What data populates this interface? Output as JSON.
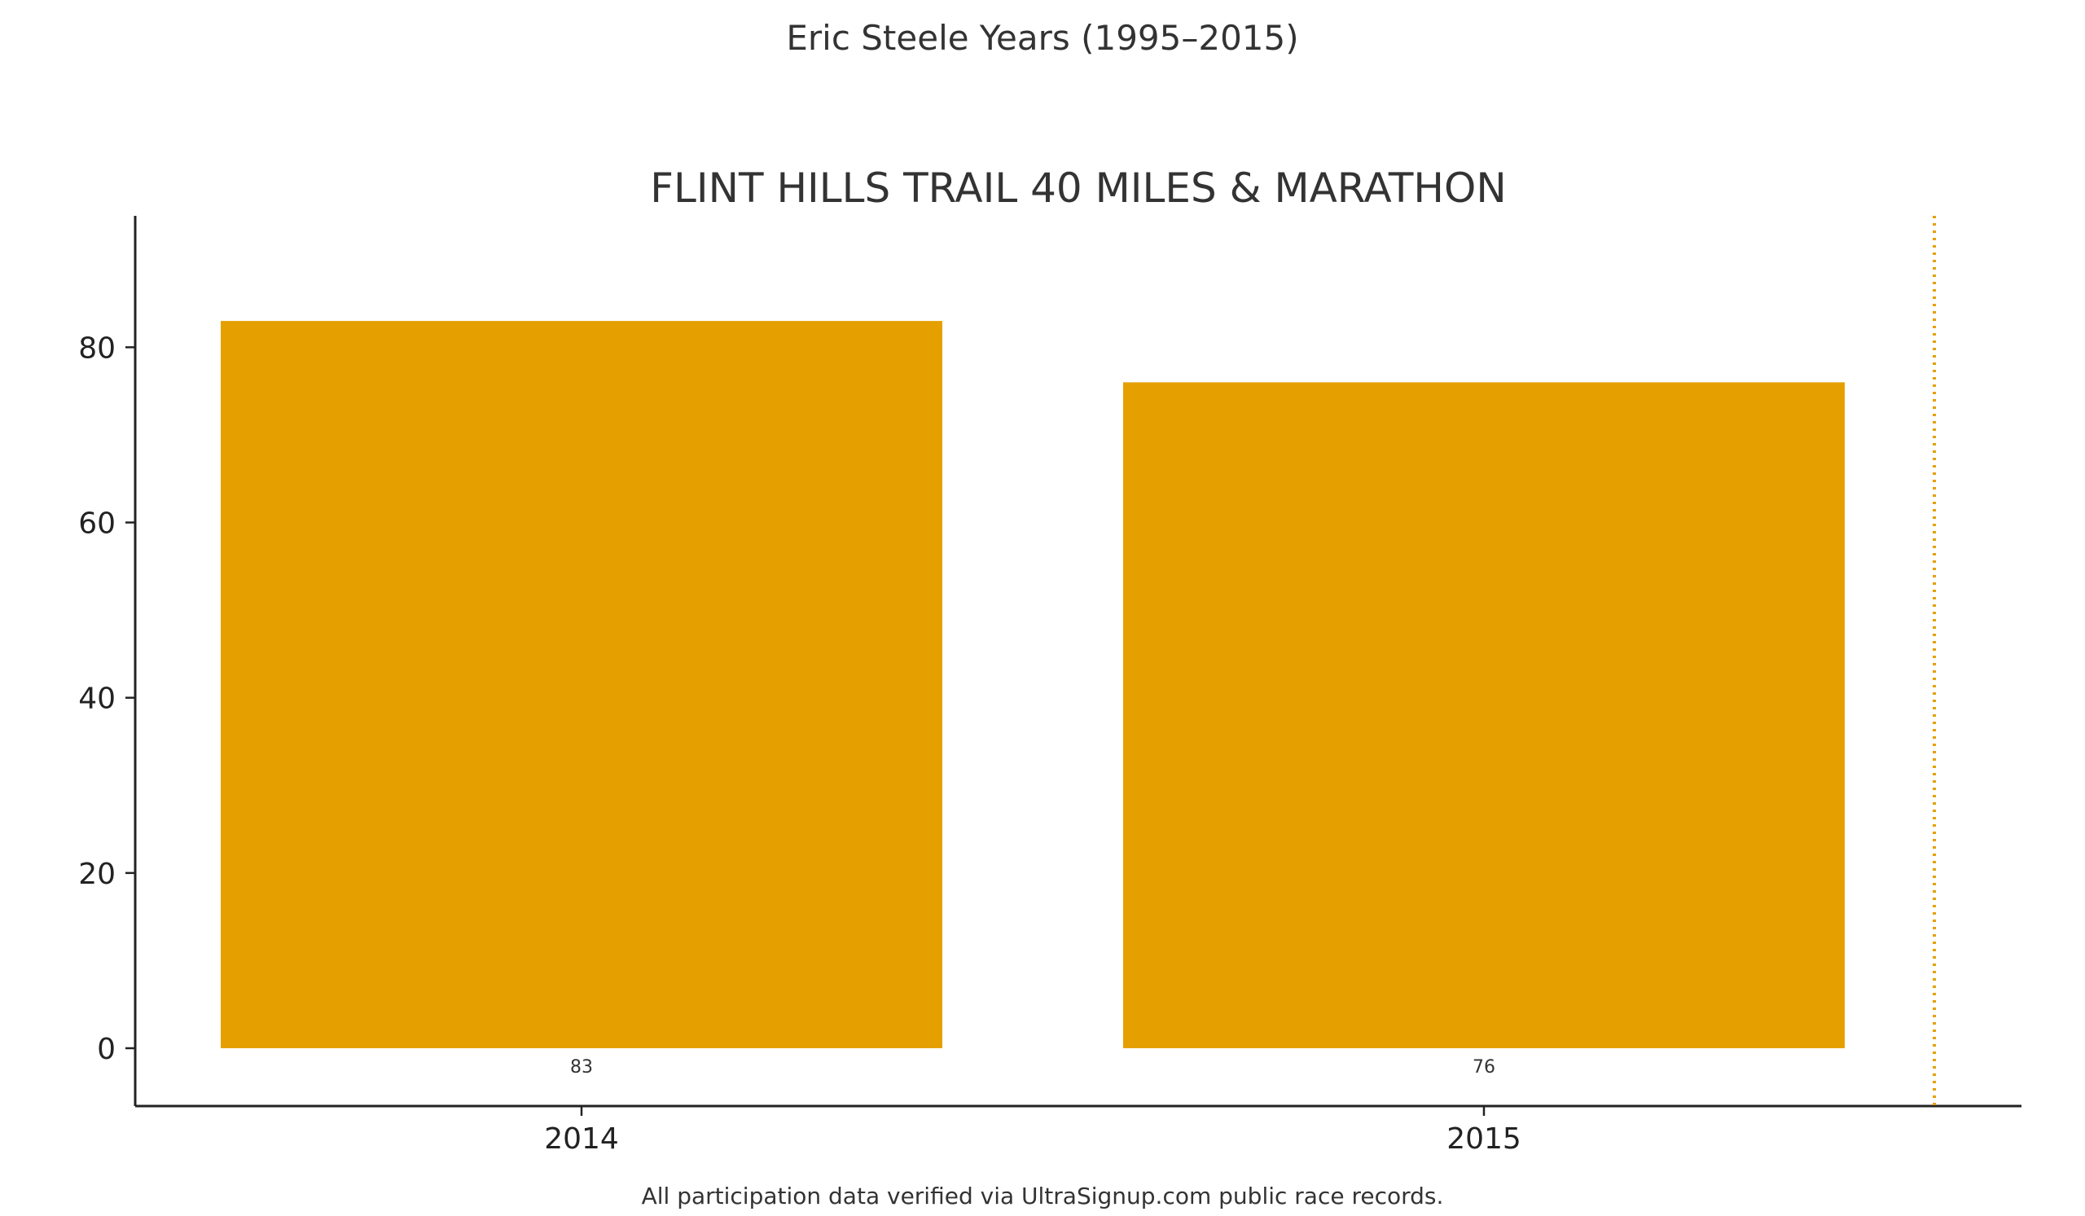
{
  "suptitle": "Eric Steele Years (1995–2015)",
  "footnote": "All participation data verified via UltraSignup.com public race records.",
  "colors": {
    "bar": "#E5A000",
    "marker_line": "#E5A000",
    "axis": "#222222",
    "text": "#333333"
  },
  "chart_data": {
    "type": "bar",
    "title": "FLINT HILLS TRAIL 40 MILES & MARATHON",
    "xlabel": "",
    "ylabel": "",
    "categories": [
      "2014",
      "2015"
    ],
    "values": [
      83,
      76
    ],
    "value_labels": [
      "83",
      "76"
    ],
    "ylim": [
      -6.6,
      95
    ],
    "yticks": [
      0,
      20,
      40,
      60,
      80
    ],
    "ytick_labels": [
      "0",
      "20",
      "40",
      "60",
      "80"
    ],
    "grid": false,
    "legend": "none",
    "vertical_marker": {
      "style": "dotted",
      "color": "#E5A000"
    }
  }
}
